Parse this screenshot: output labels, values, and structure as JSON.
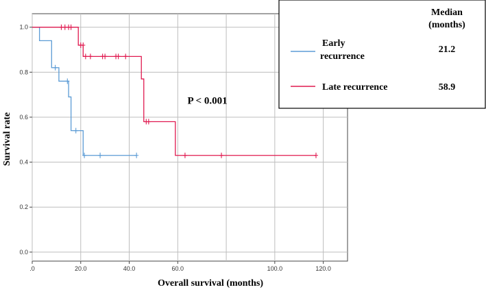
{
  "chart_data": {
    "type": "line",
    "title": "",
    "xlabel": "Overall survival (months)",
    "ylabel": "Survival rate",
    "xlim": [
      0,
      130
    ],
    "ylim": [
      -0.04,
      1.06
    ],
    "x_ticks": [
      0,
      20,
      40,
      60,
      100,
      120
    ],
    "x_tick_labels": [
      ".0",
      "20.0",
      "40.0",
      "60.0",
      "100.0",
      "120.0"
    ],
    "y_ticks": [
      0.0,
      0.2,
      0.4,
      0.6,
      0.8,
      1.0
    ],
    "y_tick_labels": [
      "0.0",
      "0.2",
      "0.4",
      "0.6",
      "0.8",
      "1.0"
    ],
    "grid_x": [
      0,
      20,
      40,
      60,
      80,
      100,
      120
    ],
    "grid_y": [
      0.0,
      0.2,
      0.4,
      0.6,
      0.8,
      1.0
    ],
    "grid": true,
    "annotation": "P < 0.001",
    "annotation_pos": {
      "x": 64,
      "y": 0.66
    },
    "legend": {
      "placement": "top-right",
      "header": [
        "Median",
        "(months)"
      ]
    },
    "series": [
      {
        "name": "Early recurrence",
        "median": "21.2",
        "legend_lines": [
          "Early",
          "recurrence"
        ],
        "color": "#5b9bd5",
        "steps": [
          [
            0,
            1.0
          ],
          [
            3,
            0.94
          ],
          [
            8,
            0.82
          ],
          [
            11,
            0.76
          ],
          [
            15,
            0.69
          ],
          [
            16,
            0.54
          ],
          [
            21,
            0.43
          ],
          [
            43,
            0.43
          ]
        ],
        "censored": [
          [
            9.5,
            0.82
          ],
          [
            14.5,
            0.76
          ],
          [
            18,
            0.54
          ],
          [
            21.5,
            0.43
          ],
          [
            28,
            0.43
          ],
          [
            43,
            0.43
          ]
        ]
      },
      {
        "name": "Late recurrence",
        "median": "58.9",
        "legend_lines": [
          "Late recurrence"
        ],
        "color": "#e0194f",
        "steps": [
          [
            0,
            1.0
          ],
          [
            19,
            0.92
          ],
          [
            21,
            0.87
          ],
          [
            45,
            0.77
          ],
          [
            46,
            0.58
          ],
          [
            59,
            0.43
          ],
          [
            117,
            0.43
          ]
        ],
        "censored": [
          [
            12,
            1.0
          ],
          [
            13.5,
            1.0
          ],
          [
            15,
            1.0
          ],
          [
            16,
            1.0
          ],
          [
            20,
            0.92
          ],
          [
            21,
            0.92
          ],
          [
            22,
            0.87
          ],
          [
            24,
            0.87
          ],
          [
            29,
            0.87
          ],
          [
            30,
            0.87
          ],
          [
            34.5,
            0.87
          ],
          [
            35.5,
            0.87
          ],
          [
            38.5,
            0.87
          ],
          [
            47,
            0.58
          ],
          [
            48,
            0.58
          ],
          [
            63,
            0.43
          ],
          [
            78,
            0.43
          ],
          [
            117,
            0.43
          ]
        ]
      }
    ]
  }
}
